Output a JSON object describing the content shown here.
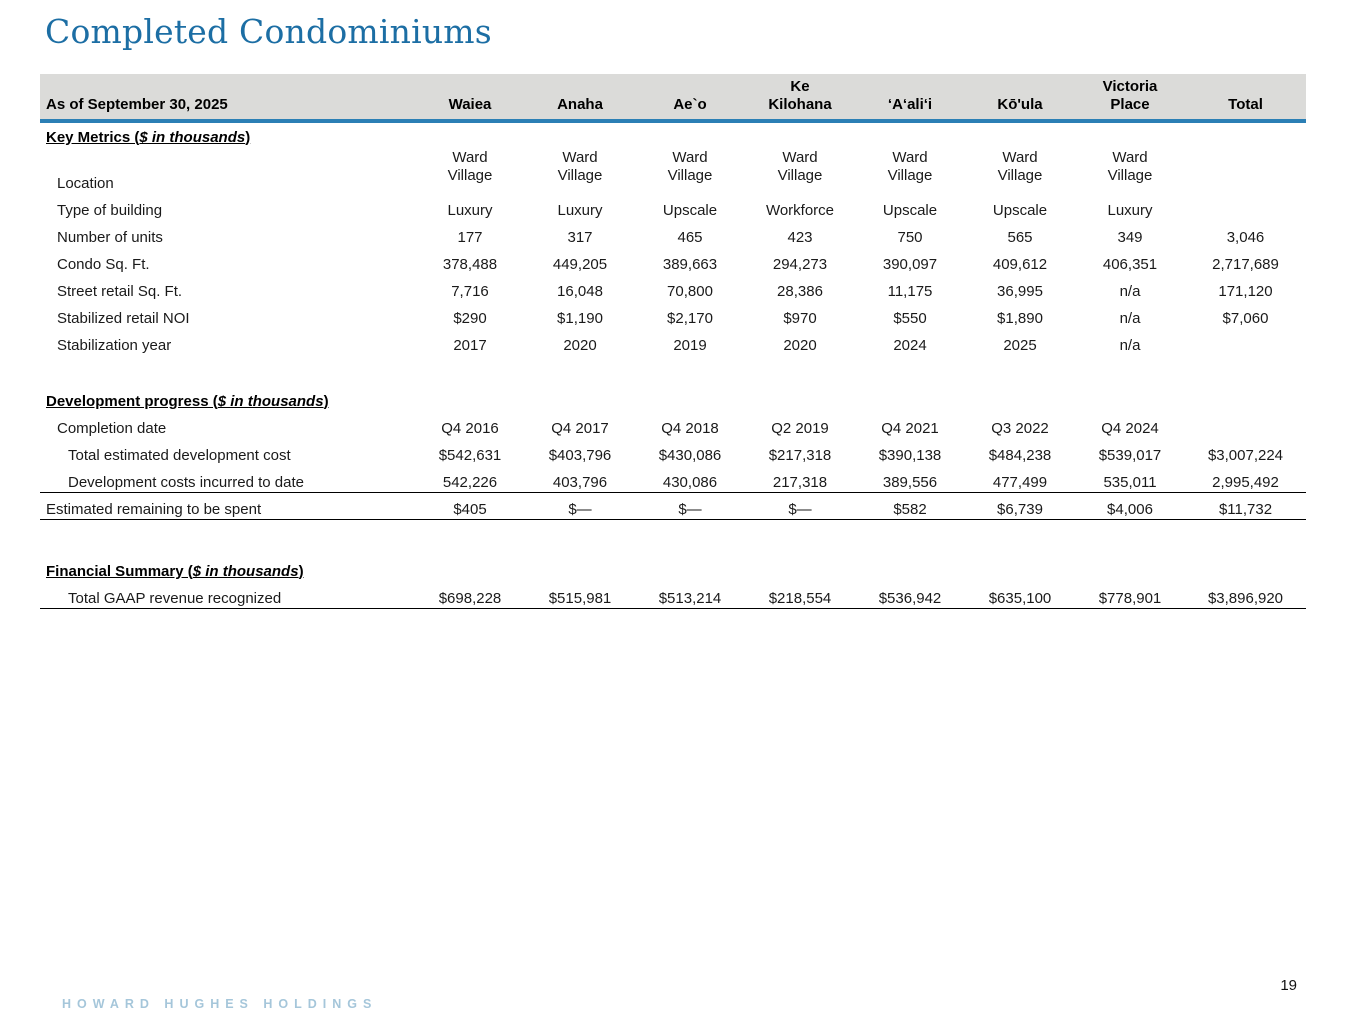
{
  "page": {
    "title": "Completed Condominiums",
    "page_number": "19",
    "footer_logo": "HOWARD HUGHES HOLDINGS"
  },
  "colors": {
    "title_blue": "#1c6ea4",
    "accent_blue": "#2b7fb5",
    "header_gray": "#dbdbd9",
    "footer_blue": "#a5c6da"
  },
  "table": {
    "header": {
      "label": "As of September 30, 2025",
      "columns": [
        "Waiea",
        "Anaha",
        "Ae`o",
        "Ke\nKilohana",
        "‘A‘ali‘i",
        "Kō'ula",
        "Victoria\nPlace",
        "Total"
      ]
    },
    "sections": [
      {
        "heading": {
          "prefix": "Key Metrics (",
          "italic": "$ in thousands",
          "suffix": ")"
        },
        "rows": [
          {
            "label": "Location",
            "indent": 1,
            "multiline": true,
            "values": [
              "Ward\nVillage",
              "Ward\nVillage",
              "Ward\nVillage",
              "Ward\nVillage",
              "Ward\nVillage",
              "Ward\nVillage",
              "Ward\nVillage",
              ""
            ]
          },
          {
            "label": "Type of building",
            "indent": 1,
            "values": [
              "Luxury",
              "Luxury",
              "Upscale",
              "Workforce",
              "Upscale",
              "Upscale",
              "Luxury",
              ""
            ]
          },
          {
            "label": "Number of units",
            "indent": 1,
            "values": [
              "177",
              "317",
              "465",
              "423",
              "750",
              "565",
              "349",
              "3,046"
            ]
          },
          {
            "label": "Condo Sq. Ft.",
            "indent": 1,
            "values": [
              "378,488",
              "449,205",
              "389,663",
              "294,273",
              "390,097",
              "409,612",
              "406,351",
              "2,717,689"
            ]
          },
          {
            "label": "Street retail Sq. Ft.",
            "indent": 1,
            "values": [
              "7,716",
              "16,048",
              "70,800",
              "28,386",
              "11,175",
              "36,995",
              "n/a",
              "171,120"
            ]
          },
          {
            "label": "Stabilized retail NOI",
            "indent": 1,
            "values": [
              "$290",
              "$1,190",
              "$2,170",
              "$970",
              "$550",
              "$1,890",
              "n/a",
              "$7,060"
            ]
          },
          {
            "label": "Stabilization year",
            "indent": 1,
            "values": [
              "2017",
              "2020",
              "2019",
              "2020",
              "2024",
              "2025",
              "n/a",
              ""
            ]
          }
        ]
      },
      {
        "heading": {
          "prefix": "Development progress (",
          "italic": "$ in thousands",
          "suffix": ")"
        },
        "rows": [
          {
            "label": "Completion date",
            "indent": 1,
            "values": [
              "Q4 2016",
              "Q4 2017",
              "Q4 2018",
              "Q2 2019",
              "Q4 2021",
              "Q3 2022",
              "Q4 2024",
              ""
            ]
          },
          {
            "label": "Total estimated development cost",
            "indent": 2,
            "values": [
              "$542,631",
              "$403,796",
              "$430,086",
              "$217,318",
              "$390,138",
              "$484,238",
              "$539,017",
              "$3,007,224"
            ]
          },
          {
            "label": "Development costs incurred to date",
            "indent": 2,
            "values": [
              "542,226",
              "403,796",
              "430,086",
              "217,318",
              "389,556",
              "477,499",
              "535,011",
              "2,995,492"
            ]
          },
          {
            "label": "Estimated remaining to be spent",
            "indent": 0,
            "rule": "top-bottom",
            "values": [
              "$405",
              "$—",
              "$—",
              "$—",
              "$582",
              "$6,739",
              "$4,006",
              "$11,732"
            ]
          }
        ]
      },
      {
        "heading": {
          "prefix": "Financial Summary (",
          "italic": "$ in thousands",
          "suffix": ")"
        },
        "rows": [
          {
            "label": "Total GAAP revenue recognized",
            "indent": 2,
            "rule": "bottom",
            "values": [
              "$698,228",
              "$515,981",
              "$513,214",
              "$218,554",
              "$536,942",
              "$635,100",
              "$778,901",
              "$3,896,920"
            ]
          }
        ]
      }
    ]
  }
}
